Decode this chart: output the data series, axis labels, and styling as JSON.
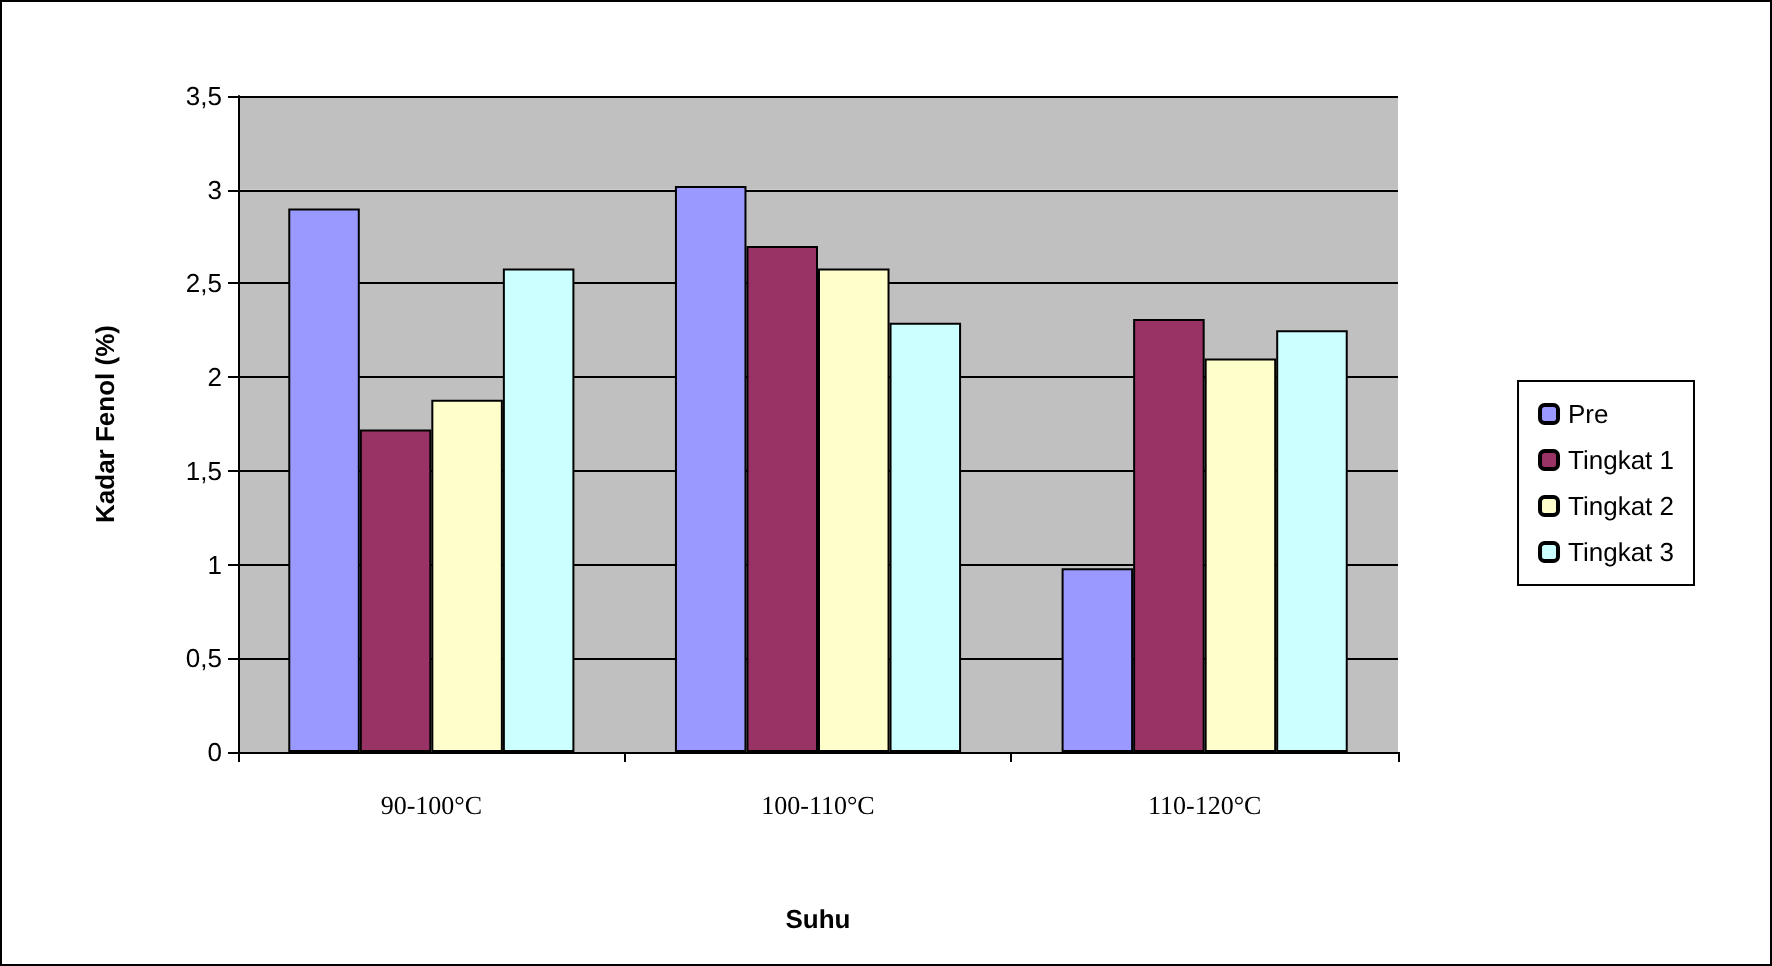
{
  "chart_data": {
    "type": "bar",
    "xlabel": "Suhu",
    "ylabel": "Kadar Fenol (%)",
    "categories": [
      "90-100°C",
      "100-110°C",
      "110-120°C"
    ],
    "series": [
      {
        "name": "Pre",
        "color": "#9999ff",
        "values": [
          2.9,
          3.02,
          0.98
        ]
      },
      {
        "name": "Tingkat 1",
        "color": "#993366",
        "values": [
          1.72,
          2.7,
          2.31
        ]
      },
      {
        "name": "Tingkat 2",
        "color": "#ffffcc",
        "values": [
          1.88,
          2.58,
          2.1
        ]
      },
      {
        "name": "Tingkat 3",
        "color": "#ccffff",
        "values": [
          2.58,
          2.29,
          2.25
        ]
      }
    ],
    "ylim": [
      0,
      3.5
    ],
    "yticks": [
      0,
      {
        "value": 0.5,
        "label": "0,5"
      },
      1,
      {
        "value": 1.5,
        "label": "1,5"
      },
      2,
      {
        "value": 2.5,
        "label": "2,5"
      },
      3,
      {
        "value": 3.5,
        "label": "3,5"
      }
    ],
    "grid": "y",
    "legend": "right"
  }
}
